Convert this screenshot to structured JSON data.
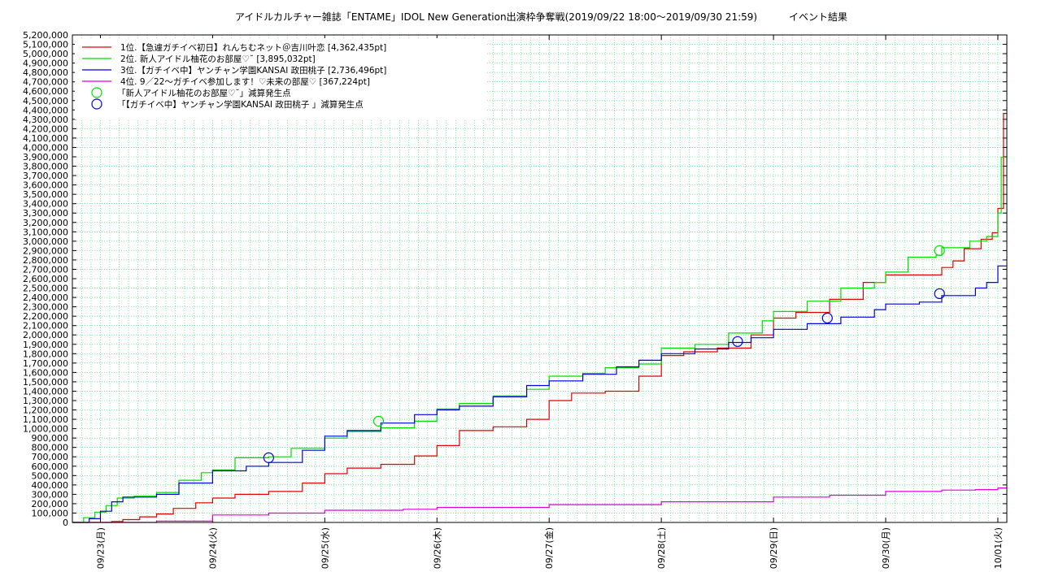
{
  "chart_data": {
    "type": "line",
    "title": "アイドルカルチャー雑誌「ENTAME」IDOL New Generation出演枠争奪戦(2019/09/22 18:00〜2019/09/30 21:59)",
    "subtitle": "イベント結果",
    "xlabel": "",
    "ylabel": "",
    "x_unit": "days since 09/23 00:00",
    "xlim": [
      -0.25,
      8.08
    ],
    "ylim": [
      0,
      5200000
    ],
    "y_tick_step": 100000,
    "x_ticks": [
      {
        "x": 0,
        "label": "09/23(月)"
      },
      {
        "x": 1,
        "label": "09/24(火)"
      },
      {
        "x": 2,
        "label": "09/25(水)"
      },
      {
        "x": 3,
        "label": "09/26(木)"
      },
      {
        "x": 4,
        "label": "09/27(金)"
      },
      {
        "x": 5,
        "label": "09/28(土)"
      },
      {
        "x": 6,
        "label": "09/29(日)"
      },
      {
        "x": 7,
        "label": "09/30(月)"
      },
      {
        "x": 8,
        "label": "10/01(火)"
      }
    ],
    "grid": true,
    "legend_position": "top-left",
    "series": [
      {
        "name": "1位.【急遽ガチイベ初日】れんちむネット＠吉川叶恋 [4,362,435pt]",
        "color": "#e00000",
        "points": [
          [
            -0.25,
            0
          ],
          [
            0,
            0
          ],
          [
            0.1,
            10000
          ],
          [
            0.2,
            30000
          ],
          [
            0.35,
            60000
          ],
          [
            0.5,
            90000
          ],
          [
            0.65,
            150000
          ],
          [
            0.85,
            210000
          ],
          [
            1.0,
            260000
          ],
          [
            1.2,
            300000
          ],
          [
            1.5,
            330000
          ],
          [
            1.8,
            420000
          ],
          [
            2.0,
            520000
          ],
          [
            2.2,
            580000
          ],
          [
            2.5,
            620000
          ],
          [
            2.8,
            710000
          ],
          [
            3.0,
            820000
          ],
          [
            3.2,
            980000
          ],
          [
            3.5,
            1020000
          ],
          [
            3.8,
            1100000
          ],
          [
            4.0,
            1300000
          ],
          [
            4.2,
            1380000
          ],
          [
            4.5,
            1400000
          ],
          [
            4.8,
            1560000
          ],
          [
            5.0,
            1780000
          ],
          [
            5.2,
            1820000
          ],
          [
            5.5,
            1860000
          ],
          [
            5.8,
            2000000
          ],
          [
            6.0,
            2180000
          ],
          [
            6.2,
            2240000
          ],
          [
            6.5,
            2380000
          ],
          [
            6.8,
            2560000
          ],
          [
            7.0,
            2640000
          ],
          [
            7.3,
            2640000
          ],
          [
            7.5,
            2720000
          ],
          [
            7.6,
            2790000
          ],
          [
            7.7,
            2920000
          ],
          [
            7.85,
            3020000
          ],
          [
            7.95,
            3090000
          ],
          [
            8.0,
            3350000
          ],
          [
            8.05,
            4362435
          ],
          [
            8.08,
            4362435
          ]
        ]
      },
      {
        "name": "2位. 新人アイドル柚花のお部屋♡˘ [3,895,032pt]",
        "color": "#00dd00",
        "points": [
          [
            -0.25,
            0
          ],
          [
            -0.15,
            50000
          ],
          [
            -0.05,
            110000
          ],
          [
            0.05,
            180000
          ],
          [
            0.15,
            260000
          ],
          [
            0.3,
            280000
          ],
          [
            0.5,
            320000
          ],
          [
            0.7,
            450000
          ],
          [
            0.9,
            530000
          ],
          [
            1.0,
            560000
          ],
          [
            1.2,
            690000
          ],
          [
            1.5,
            700000
          ],
          [
            1.7,
            790000
          ],
          [
            2.0,
            900000
          ],
          [
            2.2,
            970000
          ],
          [
            2.5,
            1010000
          ],
          [
            2.8,
            1080000
          ],
          [
            3.0,
            1210000
          ],
          [
            3.2,
            1270000
          ],
          [
            3.5,
            1350000
          ],
          [
            3.8,
            1420000
          ],
          [
            4.0,
            1560000
          ],
          [
            4.3,
            1590000
          ],
          [
            4.5,
            1650000
          ],
          [
            4.8,
            1690000
          ],
          [
            5.0,
            1860000
          ],
          [
            5.3,
            1900000
          ],
          [
            5.6,
            2020000
          ],
          [
            5.9,
            2150000
          ],
          [
            6.0,
            2250000
          ],
          [
            6.3,
            2360000
          ],
          [
            6.6,
            2500000
          ],
          [
            6.9,
            2560000
          ],
          [
            7.0,
            2670000
          ],
          [
            7.2,
            2830000
          ],
          [
            7.45,
            2850000
          ],
          [
            7.5,
            2930000
          ],
          [
            7.75,
            3000000
          ],
          [
            7.9,
            3050000
          ],
          [
            8.0,
            3300000
          ],
          [
            8.03,
            3895032
          ],
          [
            8.08,
            3895032
          ]
        ]
      },
      {
        "name": "3位.【ガチイベ中】ヤンチャン学園KANSAI 政田桃子 [2,736,496pt]",
        "color": "#0000e0",
        "points": [
          [
            -0.25,
            0
          ],
          [
            -0.1,
            40000
          ],
          [
            0,
            120000
          ],
          [
            0.1,
            220000
          ],
          [
            0.2,
            270000
          ],
          [
            0.5,
            300000
          ],
          [
            0.7,
            420000
          ],
          [
            1.0,
            550000
          ],
          [
            1.3,
            600000
          ],
          [
            1.5,
            640000
          ],
          [
            1.8,
            770000
          ],
          [
            2.0,
            920000
          ],
          [
            2.2,
            980000
          ],
          [
            2.5,
            1060000
          ],
          [
            2.8,
            1150000
          ],
          [
            3.0,
            1200000
          ],
          [
            3.2,
            1240000
          ],
          [
            3.5,
            1340000
          ],
          [
            3.8,
            1460000
          ],
          [
            4.0,
            1510000
          ],
          [
            4.3,
            1580000
          ],
          [
            4.6,
            1660000
          ],
          [
            4.8,
            1730000
          ],
          [
            5.0,
            1800000
          ],
          [
            5.3,
            1850000
          ],
          [
            5.6,
            1920000
          ],
          [
            5.8,
            1970000
          ],
          [
            6.0,
            2060000
          ],
          [
            6.3,
            2120000
          ],
          [
            6.6,
            2190000
          ],
          [
            6.9,
            2270000
          ],
          [
            7.0,
            2330000
          ],
          [
            7.3,
            2350000
          ],
          [
            7.5,
            2420000
          ],
          [
            7.8,
            2500000
          ],
          [
            7.9,
            2560000
          ],
          [
            8.0,
            2736496
          ],
          [
            8.08,
            2736496
          ]
        ]
      },
      {
        "name": "4位. 9／22〜ガチイベ参加します！♡未来の部屋♡ [367,224pt]",
        "color": "#dd00dd",
        "points": [
          [
            -0.25,
            0
          ],
          [
            0.5,
            15000
          ],
          [
            1.0,
            80000
          ],
          [
            1.5,
            100000
          ],
          [
            2.0,
            130000
          ],
          [
            2.7,
            140000
          ],
          [
            3.0,
            160000
          ],
          [
            4.0,
            190000
          ],
          [
            5.0,
            220000
          ],
          [
            6.0,
            270000
          ],
          [
            6.5,
            290000
          ],
          [
            7.0,
            330000
          ],
          [
            7.5,
            345000
          ],
          [
            7.8,
            350000
          ],
          [
            8.0,
            367224
          ],
          [
            8.08,
            367224
          ]
        ]
      }
    ],
    "markers": [
      {
        "name": "「新人アイドル柚花のお部屋♡˘」減算発生点",
        "color": "#00dd00",
        "points": [
          [
            2.48,
            1080000
          ],
          [
            7.48,
            2900000
          ]
        ]
      },
      {
        "name": "「【ガチイベ中】ヤンチャン学園KANSAI 政田桃子 」減算発生点",
        "color": "#0000e0",
        "points": [
          [
            1.5,
            690000
          ],
          [
            5.68,
            1930000
          ],
          [
            6.48,
            2180000
          ],
          [
            7.48,
            2440000
          ]
        ]
      }
    ]
  }
}
